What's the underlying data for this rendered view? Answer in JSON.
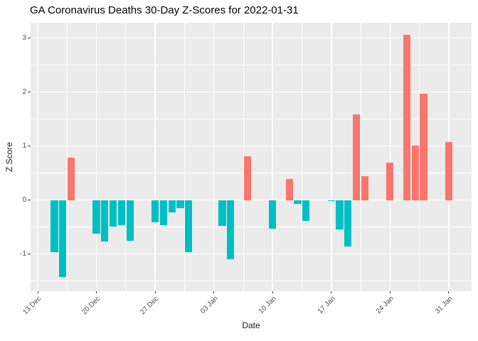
{
  "title": "GA Coronavirus Deaths 30-Day Z-Scores for 2022-01-31",
  "chart_data": {
    "type": "bar",
    "title": "GA Coronavirus Deaths 30-Day Z-Scores for 2022-01-31",
    "xlabel": "Date",
    "ylabel": "Z Score",
    "legend_position": "none",
    "grid": "on",
    "ylim": [
      -1.69,
      3.29
    ],
    "y_ticks": [
      3,
      2,
      1,
      0,
      -1
    ],
    "y_tick_labels": [
      "3",
      "2",
      "1",
      "0",
      "-1"
    ],
    "y_minor_ticks": [
      2.5,
      1.5,
      0.5,
      -0.5,
      -1.5
    ],
    "x_tick_labels": [
      "13 Dec",
      "20 Dec",
      "27 Dec",
      "03 Jan",
      "10 Jan",
      "17 Jan",
      "24 Jan",
      "31 Jan"
    ],
    "x_tick_day_offsets": [
      0,
      7,
      14,
      21,
      28,
      35,
      42,
      49
    ],
    "x_minor_day_offsets": [
      3.5,
      10.5,
      17.5,
      24.5,
      31.5,
      38.5,
      45.5
    ],
    "bars": [
      {
        "date": "15 Dec",
        "day": 2,
        "value": -0.96
      },
      {
        "date": "16 Dec",
        "day": 3,
        "value": -1.42
      },
      {
        "date": "17 Dec",
        "day": 4,
        "value": 0.78
      },
      {
        "date": "20 Dec",
        "day": 7,
        "value": -0.62
      },
      {
        "date": "21 Dec",
        "day": 8,
        "value": -0.77
      },
      {
        "date": "22 Dec",
        "day": 9,
        "value": -0.49
      },
      {
        "date": "23 Dec",
        "day": 10,
        "value": -0.46
      },
      {
        "date": "24 Dec",
        "day": 11,
        "value": -0.75
      },
      {
        "date": "27 Dec",
        "day": 14,
        "value": -0.41
      },
      {
        "date": "28 Dec",
        "day": 15,
        "value": -0.47
      },
      {
        "date": "29 Dec",
        "day": 16,
        "value": -0.23
      },
      {
        "date": "30 Dec",
        "day": 17,
        "value": -0.15
      },
      {
        "date": "31 Dec",
        "day": 18,
        "value": -0.96
      },
      {
        "date": "04 Jan",
        "day": 22,
        "value": -0.48
      },
      {
        "date": "05 Jan",
        "day": 23,
        "value": -1.1
      },
      {
        "date": "07 Jan",
        "day": 25,
        "value": 0.81
      },
      {
        "date": "10 Jan",
        "day": 28,
        "value": -0.53
      },
      {
        "date": "12 Jan",
        "day": 30,
        "value": 0.39
      },
      {
        "date": "13 Jan",
        "day": 31,
        "value": -0.07
      },
      {
        "date": "14 Jan",
        "day": 32,
        "value": -0.39
      },
      {
        "date": "17 Jan",
        "day": 35,
        "value": -0.02
      },
      {
        "date": "18 Jan",
        "day": 36,
        "value": -0.54
      },
      {
        "date": "19 Jan",
        "day": 37,
        "value": -0.86
      },
      {
        "date": "20 Jan",
        "day": 38,
        "value": 1.59
      },
      {
        "date": "21 Jan",
        "day": 39,
        "value": 0.45
      },
      {
        "date": "24 Jan",
        "day": 42,
        "value": 0.69
      },
      {
        "date": "26 Jan",
        "day": 44,
        "value": 3.06
      },
      {
        "date": "27 Jan",
        "day": 45,
        "value": 1.01
      },
      {
        "date": "28 Jan",
        "day": 46,
        "value": 1.97
      },
      {
        "date": "31 Jan",
        "day": 49,
        "value": 1.07
      }
    ],
    "colors": {
      "positive": "#F8766D",
      "negative": "#00BFC4",
      "panel_background": "#EBEBEB",
      "gridline": "#FFFFFF",
      "axis_text": "#4D4D4D",
      "tick_mark": "#333333",
      "title": "#000000",
      "background": "#FFFFFF"
    }
  }
}
